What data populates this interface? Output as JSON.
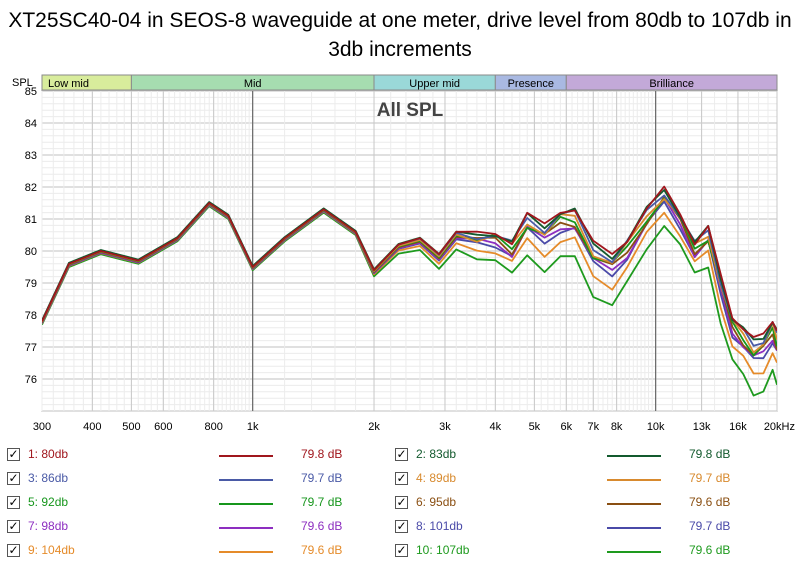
{
  "chart_data": {
    "type": "line",
    "title": "XT25SC40-04 in SEOS-8 waveguide at one meter, drive level from 80db to 107db in 3db increments",
    "inner_title": "All SPL",
    "ylabel": "SPL",
    "xlabel": "",
    "x_scale": "log",
    "xlim": [
      300,
      20000
    ],
    "ylim": [
      75,
      85
    ],
    "y_ticks": [
      "85",
      "84",
      "83",
      "82",
      "81",
      "80",
      "79",
      "78",
      "77",
      "76"
    ],
    "x_ticks": [
      {
        "f": 300,
        "label": "300"
      },
      {
        "f": 400,
        "label": "400"
      },
      {
        "f": 500,
        "label": "500"
      },
      {
        "f": 600,
        "label": "600"
      },
      {
        "f": 800,
        "label": "800"
      },
      {
        "f": 1000,
        "label": "1k"
      },
      {
        "f": 2000,
        "label": "2k"
      },
      {
        "f": 3000,
        "label": "3k"
      },
      {
        "f": 4000,
        "label": "4k"
      },
      {
        "f": 5000,
        "label": "5k"
      },
      {
        "f": 6000,
        "label": "6k"
      },
      {
        "f": 7000,
        "label": "7k"
      },
      {
        "f": 8000,
        "label": "8k"
      },
      {
        "f": 10000,
        "label": "10k"
      },
      {
        "f": 13000,
        "label": "13k"
      },
      {
        "f": 16000,
        "label": "16k"
      },
      {
        "f": 20000,
        "label": "20kHz"
      }
    ],
    "bands": [
      {
        "name": "Low mid",
        "f0": 300,
        "f1": 500,
        "color": "#d8ec9c"
      },
      {
        "name": "Mid",
        "f0": 500,
        "f1": 2000,
        "color": "#a6ddb0"
      },
      {
        "name": "Upper mid",
        "f0": 2000,
        "f1": 4000,
        "color": "#9ad8d8"
      },
      {
        "name": "Presence",
        "f0": 4000,
        "f1": 6000,
        "color": "#a9b9e2"
      },
      {
        "name": "Brilliance",
        "f0": 6000,
        "f1": 20000,
        "color": "#c3a9d8"
      }
    ],
    "x": [
      300,
      350,
      420,
      520,
      650,
      780,
      870,
      1000,
      1200,
      1500,
      1800,
      2000,
      2300,
      2600,
      2900,
      3200,
      3600,
      4000,
      4400,
      4800,
      5300,
      5800,
      6300,
      7000,
      7800,
      8500,
      9500,
      10500,
      11500,
      12500,
      13500,
      14500,
      15500,
      16500,
      17500,
      18500,
      19500,
      20000
    ],
    "base": [
      77.8,
      79.6,
      80.0,
      79.7,
      80.4,
      81.5,
      81.1,
      79.5,
      80.4,
      81.3,
      80.6,
      79.4,
      80.2,
      80.4,
      79.9,
      80.6,
      80.5,
      80.6,
      80.3,
      81.1,
      80.8,
      81.3,
      81.3,
      80.2,
      79.9,
      80.4,
      81.3,
      81.9,
      81.2,
      80.3,
      80.7,
      79.2,
      78.0,
      77.6,
      77.2,
      77.4,
      77.9,
      77.5
    ],
    "compression": [
      0.0,
      0.0,
      0.0,
      0.0,
      0.0,
      0.0,
      0.0,
      0.0,
      0.0,
      0.0,
      0.0,
      0.05,
      0.1,
      0.15,
      0.2,
      0.25,
      0.3,
      0.45,
      0.55,
      0.6,
      0.7,
      0.8,
      0.8,
      0.8,
      0.8,
      0.75,
      0.65,
      0.5,
      0.5,
      0.55,
      0.6,
      0.7,
      0.75,
      0.8,
      0.85,
      0.9,
      0.9,
      0.9
    ],
    "series": [
      {
        "name": "1: 80db",
        "value": "79.8 dB",
        "color": "#a0161d",
        "offset": 0.0,
        "level": 0
      },
      {
        "name": "2: 83db",
        "value": "79.8 dB",
        "color": "#135a2e",
        "offset": 0.03,
        "level": 1
      },
      {
        "name": "3: 86db",
        "value": "79.7 dB",
        "color": "#4a5aa6",
        "offset": 0.02,
        "level": 2
      },
      {
        "name": "4: 89db",
        "value": "79.7 dB",
        "color": "#d88a2e",
        "offset": -0.01,
        "level": 3
      },
      {
        "name": "5: 92db",
        "value": "79.7 dB",
        "color": "#16961c",
        "offset": -0.02,
        "level": 4
      },
      {
        "name": "6: 95db",
        "value": "79.6 dB",
        "color": "#8a4f12",
        "offset": -0.03,
        "level": 5
      },
      {
        "name": "7: 98db",
        "value": "79.6 dB",
        "color": "#8d2ec0",
        "offset": -0.05,
        "level": 6
      },
      {
        "name": "8: 101db",
        "value": "79.7 dB",
        "color": "#4a4aa8",
        "offset": -0.06,
        "level": 7
      },
      {
        "name": "9: 104db",
        "value": "79.6 dB",
        "color": "#e58b2a",
        "offset": -0.07,
        "level": 8
      },
      {
        "name": "10: 107db",
        "value": "79.6 dB",
        "color": "#1e9a1e",
        "offset": -0.1,
        "level": 9
      }
    ]
  }
}
